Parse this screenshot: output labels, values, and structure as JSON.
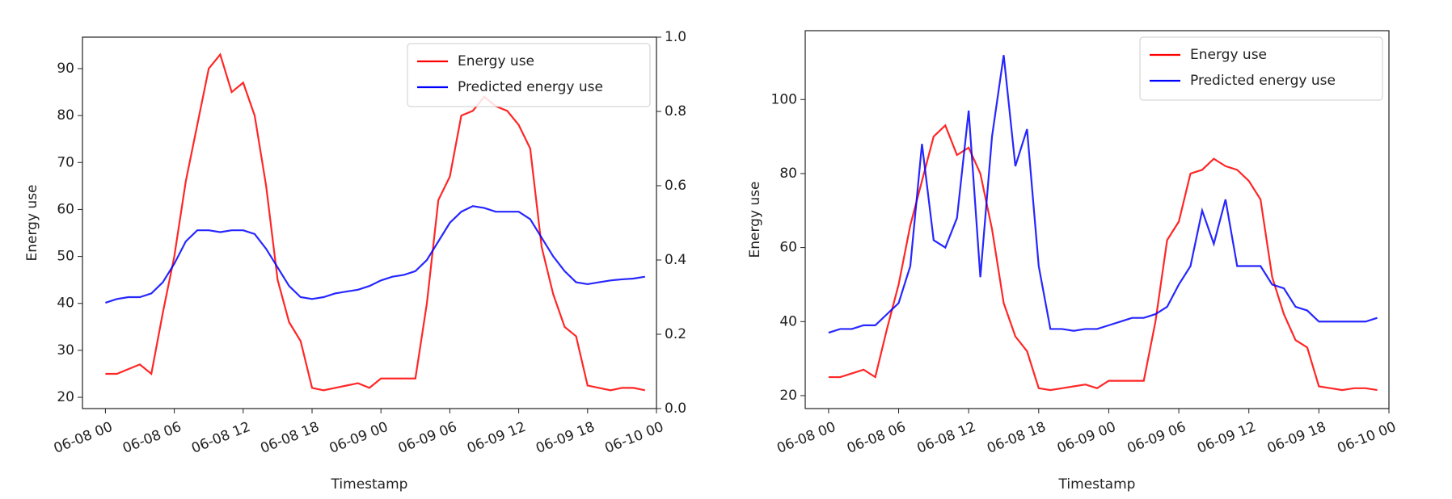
{
  "chart_data": [
    {
      "type": "line",
      "xlabel": "Timestamp",
      "ylabel": "Energy use",
      "x": [
        "06-08 00",
        "06-08 01",
        "06-08 02",
        "06-08 03",
        "06-08 04",
        "06-08 05",
        "06-08 06",
        "06-08 07",
        "06-08 08",
        "06-08 09",
        "06-08 10",
        "06-08 11",
        "06-08 12",
        "06-08 13",
        "06-08 14",
        "06-08 15",
        "06-08 16",
        "06-08 17",
        "06-08 18",
        "06-08 19",
        "06-08 20",
        "06-08 21",
        "06-08 22",
        "06-08 23",
        "06-09 00",
        "06-09 01",
        "06-09 02",
        "06-09 03",
        "06-09 04",
        "06-09 05",
        "06-09 06",
        "06-09 07",
        "06-09 08",
        "06-09 09",
        "06-09 10",
        "06-09 11",
        "06-09 12",
        "06-09 13",
        "06-09 14",
        "06-09 15",
        "06-09 16",
        "06-09 17",
        "06-09 18",
        "06-09 19",
        "06-09 20",
        "06-09 21",
        "06-09 22",
        "06-09 23"
      ],
      "series": [
        {
          "name": "Energy use",
          "color": "#ff0000",
          "values": [
            25,
            25,
            26,
            27,
            25,
            38,
            50,
            66,
            78,
            90,
            93,
            85,
            87,
            80,
            65,
            45,
            36,
            32,
            22,
            21.5,
            22,
            22.5,
            23,
            22,
            24,
            24,
            24,
            24,
            40,
            62,
            67,
            80,
            81,
            84,
            82,
            81,
            78,
            73,
            52,
            42,
            35,
            33,
            22.5,
            22,
            21.5,
            22,
            22,
            21.5
          ]
        },
        {
          "name": "Predicted energy use",
          "color": "#0000ff",
          "axis": "y2",
          "values": [
            0.285,
            0.295,
            0.3,
            0.3,
            0.31,
            0.34,
            0.39,
            0.45,
            0.48,
            0.48,
            0.475,
            0.48,
            0.48,
            0.47,
            0.43,
            0.38,
            0.33,
            0.3,
            0.295,
            0.3,
            0.31,
            0.315,
            0.32,
            0.33,
            0.345,
            0.355,
            0.36,
            0.37,
            0.4,
            0.45,
            0.5,
            0.53,
            0.545,
            0.54,
            0.53,
            0.53,
            0.53,
            0.51,
            0.46,
            0.41,
            0.37,
            0.34,
            0.335,
            0.34,
            0.345,
            0.348,
            0.35,
            0.355
          ]
        }
      ],
      "xlim": [
        "06-07 22",
        "06-10 00"
      ],
      "xticks": [
        "06-08 00",
        "06-08 06",
        "06-08 12",
        "06-08 18",
        "06-09 00",
        "06-09 06",
        "06-09 12",
        "06-09 18",
        "06-10 00"
      ],
      "ylim": [
        17.6,
        96.7
      ],
      "yticks": [
        20,
        30,
        40,
        50,
        60,
        70,
        80,
        90
      ],
      "y2lim": [
        0,
        1
      ],
      "y2ticks": [
        {
          "value": 0,
          "label": "0.0"
        },
        0.2,
        0.4,
        0.6,
        0.8,
        {
          "value": 1,
          "label": "1.0"
        }
      ],
      "legend": "upper right",
      "grid": false
    },
    {
      "type": "line",
      "xlabel": "Timestamp",
      "ylabel": "Energy use",
      "x": [
        "06-08 00",
        "06-08 01",
        "06-08 02",
        "06-08 03",
        "06-08 04",
        "06-08 05",
        "06-08 06",
        "06-08 07",
        "06-08 08",
        "06-08 09",
        "06-08 10",
        "06-08 11",
        "06-08 12",
        "06-08 13",
        "06-08 14",
        "06-08 15",
        "06-08 16",
        "06-08 17",
        "06-08 18",
        "06-08 19",
        "06-08 20",
        "06-08 21",
        "06-08 22",
        "06-08 23",
        "06-09 00",
        "06-09 01",
        "06-09 02",
        "06-09 03",
        "06-09 04",
        "06-09 05",
        "06-09 06",
        "06-09 07",
        "06-09 08",
        "06-09 09",
        "06-09 10",
        "06-09 11",
        "06-09 12",
        "06-09 13",
        "06-09 14",
        "06-09 15",
        "06-09 16",
        "06-09 17",
        "06-09 18",
        "06-09 19",
        "06-09 20",
        "06-09 21",
        "06-09 22",
        "06-09 23"
      ],
      "series": [
        {
          "name": "Energy use",
          "color": "#ff0000",
          "values": [
            25,
            25,
            26,
            27,
            25,
            38,
            50,
            66,
            78,
            90,
            93,
            85,
            87,
            80,
            65,
            45,
            36,
            32,
            22,
            21.5,
            22,
            22.5,
            23,
            22,
            24,
            24,
            24,
            24,
            40,
            62,
            67,
            80,
            81,
            84,
            82,
            81,
            78,
            73,
            52,
            42,
            35,
            33,
            22.5,
            22,
            21.5,
            22,
            22,
            21.5
          ]
        },
        {
          "name": "Predicted energy use",
          "color": "#0000ff",
          "values": [
            37,
            38,
            38,
            39,
            39,
            42,
            45,
            55,
            88,
            62,
            60,
            68,
            97,
            52,
            90,
            112,
            82,
            92,
            55,
            38,
            38,
            37.5,
            38,
            38,
            39,
            40,
            41,
            41,
            42,
            44,
            50,
            55,
            70,
            61,
            73,
            55,
            55,
            55,
            50,
            49,
            44,
            43,
            40,
            40,
            40,
            40,
            40,
            41
          ]
        }
      ],
      "xlim": [
        "06-07 22",
        "06-10 00"
      ],
      "xticks": [
        "06-08 00",
        "06-08 06",
        "06-08 12",
        "06-08 18",
        "06-09 00",
        "06-09 06",
        "06-09 12",
        "06-09 18",
        "06-10 00"
      ],
      "ylim": [
        16.5,
        118.6
      ],
      "yticks": [
        20,
        40,
        60,
        80,
        100
      ],
      "legend": "upper right",
      "grid": false
    }
  ]
}
